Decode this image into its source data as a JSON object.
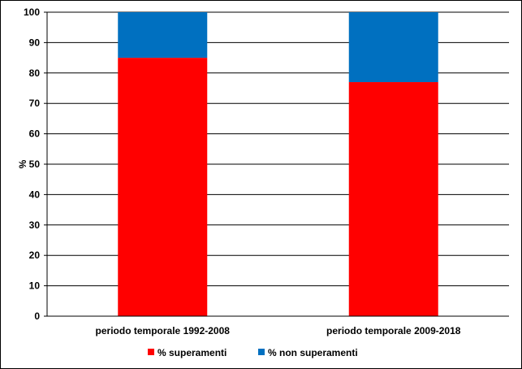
{
  "chart_data": {
    "type": "bar",
    "stacked": true,
    "categories": [
      "periodo temporale 1992-2008",
      "periodo temporale 2009-2018"
    ],
    "series": [
      {
        "name": "% superamenti",
        "values": [
          85,
          77
        ],
        "color": "#ff0000"
      },
      {
        "name": "% non superamenti",
        "values": [
          15,
          23
        ],
        "color": "#0070c0"
      }
    ],
    "title": "",
    "xlabel": "",
    "ylabel": "%",
    "ylim": [
      0,
      100
    ],
    "yticks": [
      0,
      10,
      20,
      30,
      40,
      50,
      60,
      70,
      80,
      90,
      100
    ],
    "grid": true,
    "legend": "bottom"
  }
}
